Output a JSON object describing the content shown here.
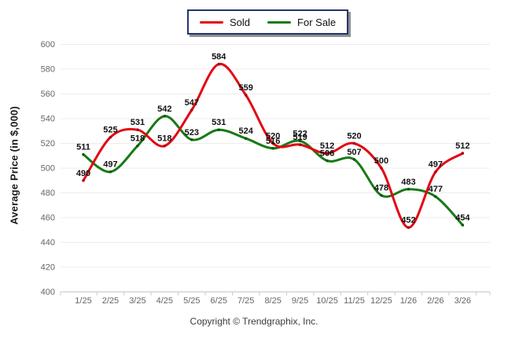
{
  "legend": {
    "items": [
      {
        "label": "Sold",
        "color": "#e30613"
      },
      {
        "label": "For Sale",
        "color": "#167a16"
      }
    ]
  },
  "chart_data": {
    "type": "line",
    "title": "",
    "x": [
      "1/25",
      "2/25",
      "3/25",
      "4/25",
      "5/25",
      "6/25",
      "7/25",
      "8/25",
      "9/25",
      "10/25",
      "11/25",
      "12/25",
      "1/26",
      "2/26",
      "3/26"
    ],
    "series": [
      {
        "name": "Sold",
        "color": "#e30613",
        "point_color": "#b30410",
        "values": [
          490,
          525,
          531,
          518,
          547,
          584,
          559,
          520,
          519,
          512,
          520,
          500,
          452,
          497,
          512
        ]
      },
      {
        "name": "For Sale",
        "color": "#167a16",
        "point_color": "#0d5c0d",
        "values": [
          511,
          497,
          518,
          542,
          523,
          531,
          524,
          516,
          522,
          506,
          507,
          478,
          483,
          477,
          454
        ]
      }
    ],
    "xlabel": "",
    "ylabel": "Average Price (in $,000)",
    "ylim": [
      400,
      600
    ],
    "ytick_step": 20,
    "grid": true,
    "legend_position": "top-center",
    "label_color": "#111111",
    "axis_text_color": "#666666",
    "grid_color": "#ececec",
    "axis_line_color": "#c9c9c9"
  },
  "footer": {
    "copyright": "Copyright © Trendgraphix, Inc."
  }
}
